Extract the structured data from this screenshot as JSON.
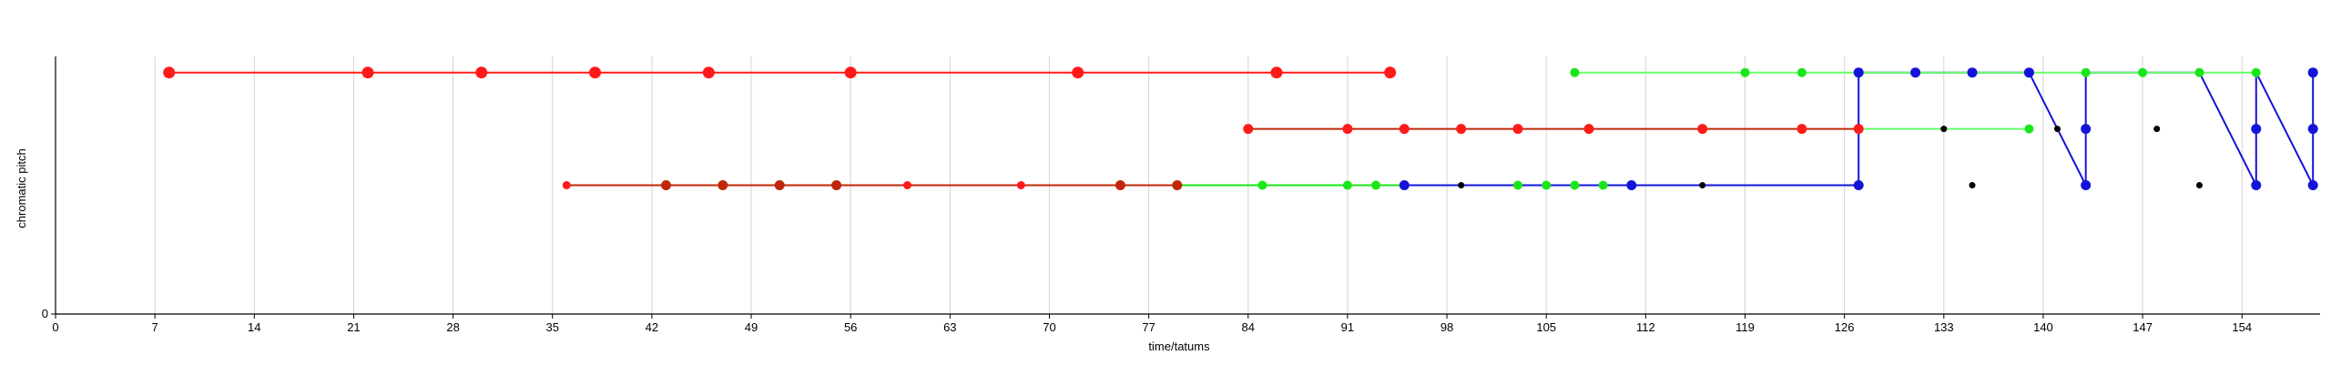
{
  "chart_data": {
    "type": "line",
    "xlabel": "time/tatums",
    "ylabel": "chromatic pitch",
    "xlim": [
      0,
      159.5
    ],
    "ylim": [
      0,
      3.2
    ],
    "x_ticks": [
      0,
      7,
      14,
      21,
      28,
      35,
      42,
      49,
      56,
      63,
      70,
      77,
      84,
      91,
      98,
      105,
      112,
      119,
      126,
      133,
      140,
      147,
      154
    ],
    "y_ticks": [
      0
    ],
    "grid_x": true,
    "legend": "none",
    "colors": {
      "red": "#ff1a1a",
      "dark_red": "#c0270a",
      "green": "#19e619",
      "light_green": "#66ff66",
      "blue": "#1414d9",
      "black": "#000000",
      "grid": "#d3d3d3"
    },
    "series": [
      {
        "color": "red",
        "points": [
          [
            8,
            3
          ],
          [
            22,
            3
          ],
          [
            30,
            3
          ],
          [
            38,
            3
          ],
          [
            46,
            3
          ],
          [
            56,
            3
          ],
          [
            72,
            3
          ],
          [
            86,
            3
          ],
          [
            94,
            3
          ]
        ]
      },
      {
        "color": "dark_red",
        "points": [
          [
            36,
            1.6
          ],
          [
            43,
            1.6
          ],
          [
            47,
            1.6
          ],
          [
            51,
            1.6
          ],
          [
            55,
            1.6
          ],
          [
            60,
            1.6
          ],
          [
            68,
            1.6
          ],
          [
            75,
            1.6
          ],
          [
            79,
            1.6
          ]
        ]
      },
      {
        "color": "green",
        "points": [
          [
            79,
            1.6
          ],
          [
            85,
            1.6
          ],
          [
            91,
            1.6
          ],
          [
            93,
            1.6
          ],
          [
            95,
            1.6
          ],
          [
            99,
            1.6
          ],
          [
            103,
            1.6
          ],
          [
            105,
            1.6
          ],
          [
            107,
            1.6
          ],
          [
            109,
            1.6
          ],
          [
            111,
            1.6
          ]
        ]
      },
      {
        "color": "blue",
        "points": [
          [
            95,
            1.6
          ],
          [
            111,
            1.6
          ],
          [
            116,
            1.6
          ],
          [
            127,
            1.6
          ],
          [
            127,
            2.3
          ],
          [
            127,
            3
          ],
          [
            131,
            3
          ],
          [
            135,
            3
          ],
          [
            139,
            3
          ],
          [
            143,
            1.6
          ],
          [
            143,
            2.3
          ],
          [
            143,
            3
          ],
          [
            151,
            3
          ],
          [
            155,
            1.6
          ],
          [
            155,
            2.3
          ],
          [
            155,
            3
          ],
          [
            159,
            1.6
          ],
          [
            159,
            2.3
          ],
          [
            159,
            3
          ]
        ]
      },
      {
        "color": "dark_red",
        "points": [
          [
            84,
            2.3
          ],
          [
            91,
            2.3
          ],
          [
            95,
            2.3
          ],
          [
            99,
            2.3
          ],
          [
            103,
            2.3
          ],
          [
            108,
            2.3
          ],
          [
            116,
            2.3
          ],
          [
            123,
            2.3
          ],
          [
            127,
            2.3
          ]
        ]
      },
      {
        "color": "light_green",
        "points": [
          [
            107,
            3
          ],
          [
            119,
            3
          ],
          [
            123,
            3
          ],
          [
            127,
            3
          ],
          [
            151,
            3
          ],
          [
            155,
            3
          ]
        ]
      },
      {
        "color": "light_green",
        "points": [
          [
            127,
            2.3
          ],
          [
            133,
            2.3
          ],
          [
            139,
            2.3
          ]
        ]
      }
    ],
    "markers": [
      {
        "color": "red",
        "size": 6.5,
        "points": [
          [
            8,
            3
          ],
          [
            22,
            3
          ],
          [
            30,
            3
          ],
          [
            38,
            3
          ],
          [
            46,
            3
          ],
          [
            56,
            3
          ],
          [
            72,
            3
          ],
          [
            86,
            3
          ],
          [
            94,
            3
          ]
        ]
      },
      {
        "color": "red",
        "size": 5.5,
        "points": [
          [
            84,
            2.3
          ],
          [
            91,
            2.3
          ],
          [
            95,
            2.3
          ],
          [
            99,
            2.3
          ],
          [
            103,
            2.3
          ],
          [
            108,
            2.3
          ],
          [
            116,
            2.3
          ],
          [
            123,
            2.3
          ],
          [
            127,
            2.3
          ]
        ]
      },
      {
        "color": "red",
        "size": 4.5,
        "points": [
          [
            36,
            1.6
          ],
          [
            60,
            1.6
          ],
          [
            68,
            1.6
          ]
        ]
      },
      {
        "color": "dark_red",
        "size": 5.5,
        "points": [
          [
            43,
            1.6
          ],
          [
            47,
            1.6
          ],
          [
            51,
            1.6
          ],
          [
            55,
            1.6
          ],
          [
            75,
            1.6
          ],
          [
            79,
            1.6
          ]
        ]
      },
      {
        "color": "green",
        "size": 5,
        "points": [
          [
            85,
            1.6
          ],
          [
            91,
            1.6
          ],
          [
            93,
            1.6
          ],
          [
            103,
            1.6
          ],
          [
            105,
            1.6
          ],
          [
            107,
            1.6
          ],
          [
            109,
            1.6
          ],
          [
            107,
            3
          ],
          [
            119,
            3
          ],
          [
            123,
            3
          ],
          [
            139,
            2.3
          ],
          [
            143,
            3
          ],
          [
            147,
            3
          ],
          [
            151,
            3
          ],
          [
            155,
            3
          ]
        ]
      },
      {
        "color": "blue",
        "size": 5.5,
        "points": [
          [
            95,
            1.6
          ],
          [
            111,
            1.6
          ],
          [
            127,
            1.6
          ],
          [
            127,
            3
          ],
          [
            131,
            3
          ],
          [
            135,
            3
          ],
          [
            139,
            3
          ],
          [
            143,
            1.6
          ],
          [
            143,
            2.3
          ],
          [
            155,
            1.6
          ],
          [
            155,
            2.3
          ],
          [
            159,
            1.6
          ],
          [
            159,
            2.3
          ],
          [
            159,
            3
          ]
        ]
      },
      {
        "color": "black",
        "size": 3.5,
        "points": [
          [
            99,
            1.6
          ],
          [
            116,
            1.6
          ],
          [
            133,
            2.3
          ],
          [
            135,
            1.6
          ],
          [
            141,
            2.3
          ],
          [
            148,
            2.3
          ],
          [
            151,
            1.6
          ]
        ]
      }
    ]
  }
}
